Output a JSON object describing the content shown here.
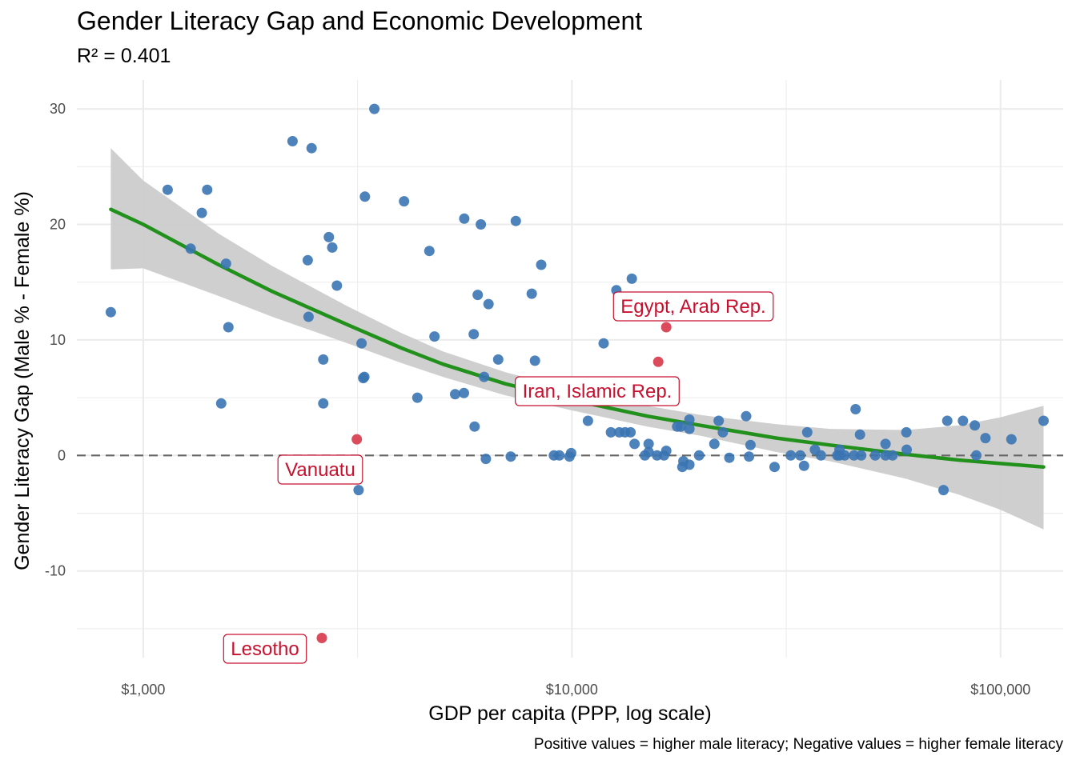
{
  "chart_data": {
    "type": "scatter",
    "title": "Gender Literacy Gap and Economic Development",
    "subtitle": "R² = 0.401",
    "caption": "Positive values = higher male literacy; Negative values = higher female literacy",
    "xlabel": "GDP per capita (PPP, log scale)",
    "ylabel": "Gender Literacy Gap (Male % - Female %)",
    "x_scale": "log10",
    "xlim": [
      700,
      140000
    ],
    "ylim": [
      -17.5,
      32.5
    ],
    "x_ticks": [
      1000,
      10000,
      100000
    ],
    "x_tick_labels": [
      "$1,000",
      "$10,000",
      "$100,000"
    ],
    "y_ticks": [
      -10,
      0,
      10,
      20,
      30
    ],
    "y_tick_labels": [
      "-10",
      "0",
      "10",
      "20",
      "30"
    ],
    "grid": true,
    "reference_line": {
      "y": 0,
      "style": "dashed",
      "color": "#666666"
    },
    "colors": {
      "points": "#3a74b3",
      "highlight": "#d7374a",
      "trend": "#22911c",
      "band": "#cccccc",
      "annotation": "#c8102e",
      "grid": "#ebebeb"
    },
    "points": [
      [
        840,
        12.4
      ],
      [
        1140,
        23
      ],
      [
        1290,
        17.9
      ],
      [
        1370,
        21
      ],
      [
        1410,
        23
      ],
      [
        1520,
        4.5
      ],
      [
        1560,
        16.6
      ],
      [
        1580,
        11.1
      ],
      [
        2230,
        27.2
      ],
      [
        2430,
        12
      ],
      [
        2420,
        16.9
      ],
      [
        2470,
        26.6
      ],
      [
        2630,
        8.3
      ],
      [
        2630,
        4.5
      ],
      [
        2710,
        18.9
      ],
      [
        2760,
        18
      ],
      [
        2830,
        14.7
      ],
      [
        3180,
        -3
      ],
      [
        3230,
        9.7
      ],
      [
        3260,
        6.7
      ],
      [
        3280,
        6.8
      ],
      [
        3290,
        22.4
      ],
      [
        3460,
        30
      ],
      [
        4060,
        22
      ],
      [
        4360,
        5
      ],
      [
        4650,
        17.7
      ],
      [
        4780,
        10.3
      ],
      [
        5340,
        5.3
      ],
      [
        5600,
        5.4
      ],
      [
        5610,
        20.5
      ],
      [
        5900,
        10.5
      ],
      [
        5930,
        2.5
      ],
      [
        6030,
        13.9
      ],
      [
        6130,
        20
      ],
      [
        6240,
        6.8
      ],
      [
        6300,
        -0.3
      ],
      [
        6390,
        13.1
      ],
      [
        6730,
        8.3
      ],
      [
        7200,
        -0.1
      ],
      [
        7400,
        20.3
      ],
      [
        8060,
        14
      ],
      [
        8200,
        8.2
      ],
      [
        8480,
        16.5
      ],
      [
        9080,
        0
      ],
      [
        9350,
        0
      ],
      [
        9870,
        -0.1
      ],
      [
        9960,
        0.2
      ],
      [
        10900,
        3
      ],
      [
        11860,
        9.7
      ],
      [
        12330,
        2
      ],
      [
        12700,
        14.3
      ],
      [
        12900,
        2
      ],
      [
        13300,
        2
      ],
      [
        13700,
        2
      ],
      [
        13800,
        15.3
      ],
      [
        14000,
        1
      ],
      [
        14800,
        0
      ],
      [
        15100,
        1
      ],
      [
        15100,
        0.3
      ],
      [
        15800,
        0
      ],
      [
        16400,
        0
      ],
      [
        16600,
        0.4
      ],
      [
        17600,
        2.5
      ],
      [
        17960,
        2.5
      ],
      [
        18100,
        -1
      ],
      [
        18200,
        -0.5
      ],
      [
        18800,
        3.1
      ],
      [
        18800,
        -0.8
      ],
      [
        18800,
        2.3
      ],
      [
        19800,
        0
      ],
      [
        21500,
        1
      ],
      [
        22000,
        3
      ],
      [
        22500,
        2
      ],
      [
        23300,
        -0.2
      ],
      [
        25500,
        3.4
      ],
      [
        26100,
        0.9
      ],
      [
        25900,
        -0.1
      ],
      [
        29700,
        -1
      ],
      [
        32400,
        0
      ],
      [
        34100,
        0
      ],
      [
        34800,
        -0.9
      ],
      [
        35400,
        2
      ],
      [
        36900,
        0.5
      ],
      [
        38100,
        0
      ],
      [
        41600,
        0
      ],
      [
        42100,
        0.5
      ],
      [
        42100,
        0
      ],
      [
        43300,
        0
      ],
      [
        45500,
        0
      ],
      [
        45900,
        4
      ],
      [
        47000,
        1.8
      ],
      [
        47300,
        0
      ],
      [
        51000,
        0
      ],
      [
        53900,
        1
      ],
      [
        53900,
        0
      ],
      [
        56000,
        0
      ],
      [
        60300,
        2
      ],
      [
        60400,
        0.5
      ],
      [
        73600,
        -3
      ],
      [
        75100,
        3
      ],
      [
        81700,
        3
      ],
      [
        87100,
        2.6
      ],
      [
        87800,
        0
      ],
      [
        92200,
        1.5
      ],
      [
        106000,
        1.4
      ],
      [
        126000,
        3
      ]
    ],
    "highlighted": [
      {
        "label": "Egypt, Arab Rep.",
        "x": 16600,
        "y": 11.1
      },
      {
        "label": "Iran, Islamic Rep.",
        "x": 15900,
        "y": 8.1
      },
      {
        "label": "Vanuatu",
        "x": 3150,
        "y": 1.4
      },
      {
        "label": "Lesotho",
        "x": 2610,
        "y": -15.8
      }
    ],
    "trend": {
      "method": "loess",
      "fit": [
        [
          840,
          21.3
        ],
        [
          1000,
          20
        ],
        [
          1500,
          16.5
        ],
        [
          2000,
          14.2
        ],
        [
          3000,
          11.3
        ],
        [
          4000,
          9.3
        ],
        [
          5000,
          7.9
        ],
        [
          7000,
          6.2
        ],
        [
          10000,
          4.8
        ],
        [
          15000,
          3.4
        ],
        [
          20000,
          2.6
        ],
        [
          30000,
          1.5
        ],
        [
          40000,
          0.9
        ],
        [
          60000,
          0.1
        ],
        [
          80000,
          -0.4
        ],
        [
          100000,
          -0.7
        ],
        [
          126000,
          -1
        ]
      ],
      "upper": [
        [
          840,
          26.6
        ],
        [
          1000,
          23.8
        ],
        [
          1500,
          19.2
        ],
        [
          2000,
          16.4
        ],
        [
          3000,
          12.9
        ],
        [
          4000,
          10.6
        ],
        [
          5000,
          9
        ],
        [
          7000,
          7.2
        ],
        [
          10000,
          5.7
        ],
        [
          15000,
          4.3
        ],
        [
          20000,
          3.5
        ],
        [
          30000,
          2.7
        ],
        [
          40000,
          2.3
        ],
        [
          60000,
          2.2
        ],
        [
          80000,
          2.6
        ],
        [
          100000,
          3.3
        ],
        [
          126000,
          4.3
        ]
      ],
      "lower": [
        [
          840,
          16.1
        ],
        [
          1000,
          16.2
        ],
        [
          1500,
          13.8
        ],
        [
          2000,
          12
        ],
        [
          3000,
          9.7
        ],
        [
          4000,
          8
        ],
        [
          5000,
          6.8
        ],
        [
          7000,
          5.2
        ],
        [
          10000,
          3.9
        ],
        [
          15000,
          2.5
        ],
        [
          20000,
          1.7
        ],
        [
          30000,
          0.3
        ],
        [
          40000,
          -0.5
        ],
        [
          60000,
          -2
        ],
        [
          80000,
          -3.4
        ],
        [
          100000,
          -4.7
        ],
        [
          126000,
          -6.4
        ]
      ]
    }
  }
}
